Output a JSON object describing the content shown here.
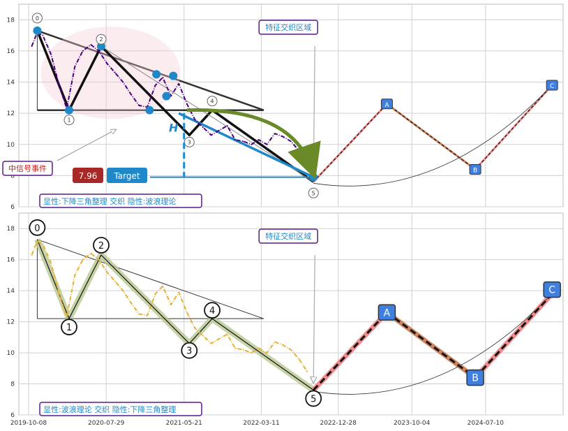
{
  "colors": {
    "price_top": "#4b0082",
    "price_bottom": "#e8b030",
    "grid": "#d0d0d0",
    "pattern_line": "#333333",
    "blue_marker": "#1e88c8",
    "label_box_border": "#5a1a8a",
    "label_text": "#1e88c8",
    "wave_highlight": "#b8c890",
    "target_value_bg": "#a82828",
    "target_btn_bg": "#1e88c8",
    "future_up": "#f08080",
    "future_down": "#c87850",
    "dashed": "#111111",
    "arc": "#6a8a2a"
  },
  "chart_data": [
    {
      "type": "line",
      "panel": "top",
      "ylim": [
        6,
        19
      ],
      "yticks": [
        6,
        8,
        10,
        12,
        14,
        16,
        18
      ],
      "xlim": [
        "2019-09-01",
        "2025-05-01"
      ],
      "xticks": [
        "2019-10-08",
        "2020-07-29",
        "2021-05-21",
        "2022-03-11",
        "2022-12-28",
        "2023-10-04",
        "2024-07-10"
      ],
      "series": [
        {
          "style": "dash-dot",
          "x": [
            "2019-10-20",
            "2019-11-10",
            "2019-12-01",
            "2020-01-01",
            "2020-02-01",
            "2020-03-01",
            "2020-04-01",
            "2020-05-01",
            "2020-06-01",
            "2020-07-01",
            "2020-08-01",
            "2020-09-01",
            "2020-10-01",
            "2020-11-01",
            "2020-12-01",
            "2021-01-01",
            "2021-02-01",
            "2021-03-01",
            "2021-04-01",
            "2021-05-01",
            "2021-06-01",
            "2021-07-01",
            "2021-08-01",
            "2021-09-01",
            "2021-10-01",
            "2021-11-01",
            "2021-12-01",
            "2022-01-01",
            "2022-02-01",
            "2022-03-01",
            "2022-04-01",
            "2022-05-01",
            "2022-06-01",
            "2022-07-01",
            "2022-08-01",
            "2022-09-01"
          ],
          "y": [
            16.3,
            17.2,
            17.0,
            15.8,
            13.8,
            12.3,
            15.0,
            16.0,
            16.4,
            16.0,
            15.2,
            14.6,
            14.0,
            13.2,
            12.5,
            12.4,
            13.8,
            14.3,
            13.1,
            13.9,
            12.6,
            11.6,
            11.1,
            10.6,
            10.9,
            11.2,
            10.3,
            10.2,
            10.0,
            10.3,
            10.0,
            10.7,
            10.5,
            10.2,
            9.6,
            8.8
          ]
        }
      ],
      "wave_points": [
        {
          "label": "0",
          "x": "2019-11-10",
          "y": 17.3
        },
        {
          "label": "1",
          "x": "2020-03-10",
          "y": 12.2
        },
        {
          "label": "2",
          "x": "2020-07-10",
          "y": 16.3
        },
        {
          "label": "3",
          "x": "2021-06-10",
          "y": 10.6
        },
        {
          "label": "4",
          "x": "2021-09-05",
          "y": 12.2
        },
        {
          "label": "5",
          "x": "2022-09-25",
          "y": 7.6
        }
      ],
      "blue_markers": [
        {
          "x": "2019-11-10",
          "y": 17.3
        },
        {
          "x": "2020-03-10",
          "y": 12.2
        },
        {
          "x": "2020-07-10",
          "y": 16.3
        },
        {
          "x": "2021-01-10",
          "y": 12.2
        },
        {
          "x": "2021-02-05",
          "y": 14.5
        },
        {
          "x": "2021-03-15",
          "y": 13.1
        },
        {
          "x": "2021-04-10",
          "y": 14.4
        },
        {
          "x": "2022-09-25",
          "y": 7.9
        }
      ],
      "future_points": [
        {
          "label": "A",
          "x": "2023-07-01",
          "y": 12.6
        },
        {
          "label": "B",
          "x": "2024-06-01",
          "y": 8.4
        },
        {
          "label": "C",
          "x": "2025-03-20",
          "y": 13.8
        }
      ],
      "annotations": {
        "feature_zone": "特征交织区域",
        "event_label": "中信号事件",
        "target_value": "7.96",
        "target_label": "Target",
        "height_label": "H",
        "patterns_label": "显性:下降三角整理 交织 隐性:波浪理论"
      }
    },
    {
      "type": "line",
      "panel": "bottom",
      "ylim": [
        6,
        19
      ],
      "yticks": [
        6,
        8,
        10,
        12,
        14,
        16,
        18
      ],
      "xlim": [
        "2019-09-01",
        "2025-05-01"
      ],
      "xticks": [
        "2019-10-08",
        "2020-07-29",
        "2021-05-21",
        "2022-03-11",
        "2022-12-28",
        "2023-10-04",
        "2024-07-10"
      ],
      "series": [
        {
          "style": "dash-dot",
          "x": [
            "2019-10-20",
            "2019-11-10",
            "2019-12-01",
            "2020-01-01",
            "2020-02-01",
            "2020-03-01",
            "2020-04-01",
            "2020-05-01",
            "2020-06-01",
            "2020-07-01",
            "2020-08-01",
            "2020-09-01",
            "2020-10-01",
            "2020-11-01",
            "2020-12-01",
            "2021-01-01",
            "2021-02-01",
            "2021-03-01",
            "2021-04-01",
            "2021-05-01",
            "2021-06-01",
            "2021-07-01",
            "2021-08-01",
            "2021-09-01",
            "2021-10-01",
            "2021-11-01",
            "2021-12-01",
            "2022-01-01",
            "2022-02-01",
            "2022-03-01",
            "2022-04-01",
            "2022-05-01",
            "2022-06-01",
            "2022-07-01",
            "2022-08-01",
            "2022-09-01"
          ],
          "y": [
            16.3,
            17.2,
            17.0,
            15.8,
            13.8,
            12.3,
            15.0,
            16.0,
            16.4,
            16.0,
            15.2,
            14.6,
            14.0,
            13.2,
            12.5,
            12.4,
            13.8,
            14.3,
            13.1,
            13.9,
            12.6,
            11.6,
            11.1,
            10.6,
            10.9,
            11.2,
            10.3,
            10.2,
            10.0,
            10.3,
            10.0,
            10.7,
            10.5,
            10.2,
            9.6,
            8.8
          ]
        }
      ],
      "wave_points": [
        {
          "label": "0",
          "x": "2019-11-10",
          "y": 17.3
        },
        {
          "label": "1",
          "x": "2020-03-10",
          "y": 12.2
        },
        {
          "label": "2",
          "x": "2020-07-10",
          "y": 16.3
        },
        {
          "label": "3",
          "x": "2021-06-10",
          "y": 10.6
        },
        {
          "label": "4",
          "x": "2021-09-05",
          "y": 12.2
        },
        {
          "label": "5",
          "x": "2022-09-25",
          "y": 7.6
        }
      ],
      "future_points": [
        {
          "label": "A",
          "x": "2023-07-01",
          "y": 12.6
        },
        {
          "label": "B",
          "x": "2024-06-01",
          "y": 8.4
        },
        {
          "label": "C",
          "x": "2025-03-20",
          "y": 13.8
        }
      ],
      "annotations": {
        "feature_zone": "特征交织区域",
        "patterns_label": "显性:波浪理论 交织 隐性:下降三角整理"
      }
    }
  ]
}
